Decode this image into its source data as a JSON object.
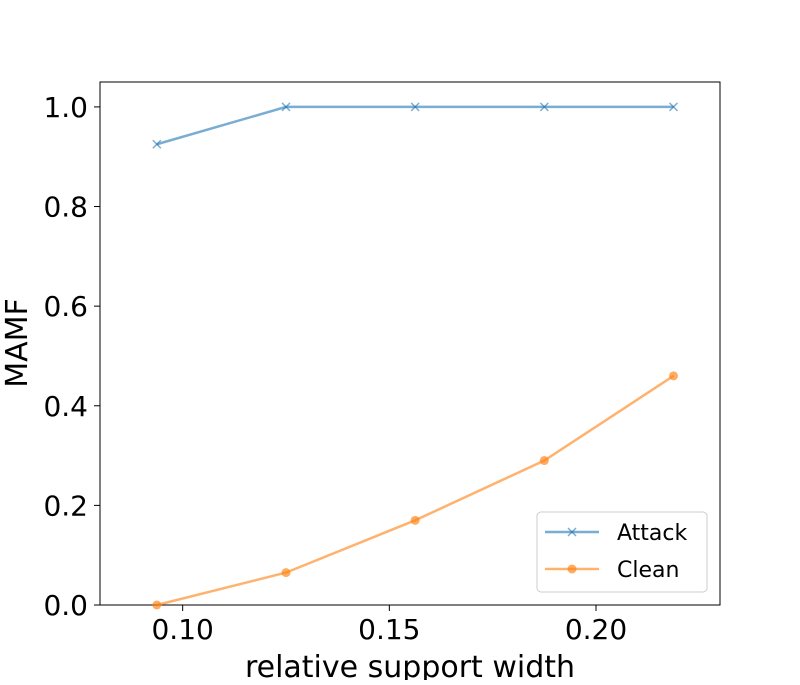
{
  "chart_data": {
    "type": "line",
    "title": "",
    "xlabel": "relative support width",
    "ylabel": "MAMF",
    "xlim": [
      0.08,
      0.23
    ],
    "ylim": [
      0.0,
      1.05
    ],
    "x": [
      0.09375,
      0.125,
      0.15625,
      0.1875,
      0.21875
    ],
    "xticks": [
      0.1,
      0.15,
      0.2
    ],
    "xtick_labels": [
      "0.10",
      "0.15",
      "0.20"
    ],
    "yticks": [
      0.0,
      0.2,
      0.4,
      0.6,
      0.8,
      1.0
    ],
    "ytick_labels": [
      "0.0",
      "0.2",
      "0.4",
      "0.6",
      "0.8",
      "1.0"
    ],
    "grid": false,
    "legend_position": "bottom-right",
    "series": [
      {
        "name": "Attack",
        "values": [
          0.925,
          1.0,
          1.0,
          1.0,
          1.0
        ],
        "color": "#1f77b4",
        "marker": "x"
      },
      {
        "name": "Clean",
        "values": [
          0.0,
          0.065,
          0.17,
          0.29,
          0.46
        ],
        "color": "#ff7f0e",
        "marker": "circle"
      }
    ]
  }
}
